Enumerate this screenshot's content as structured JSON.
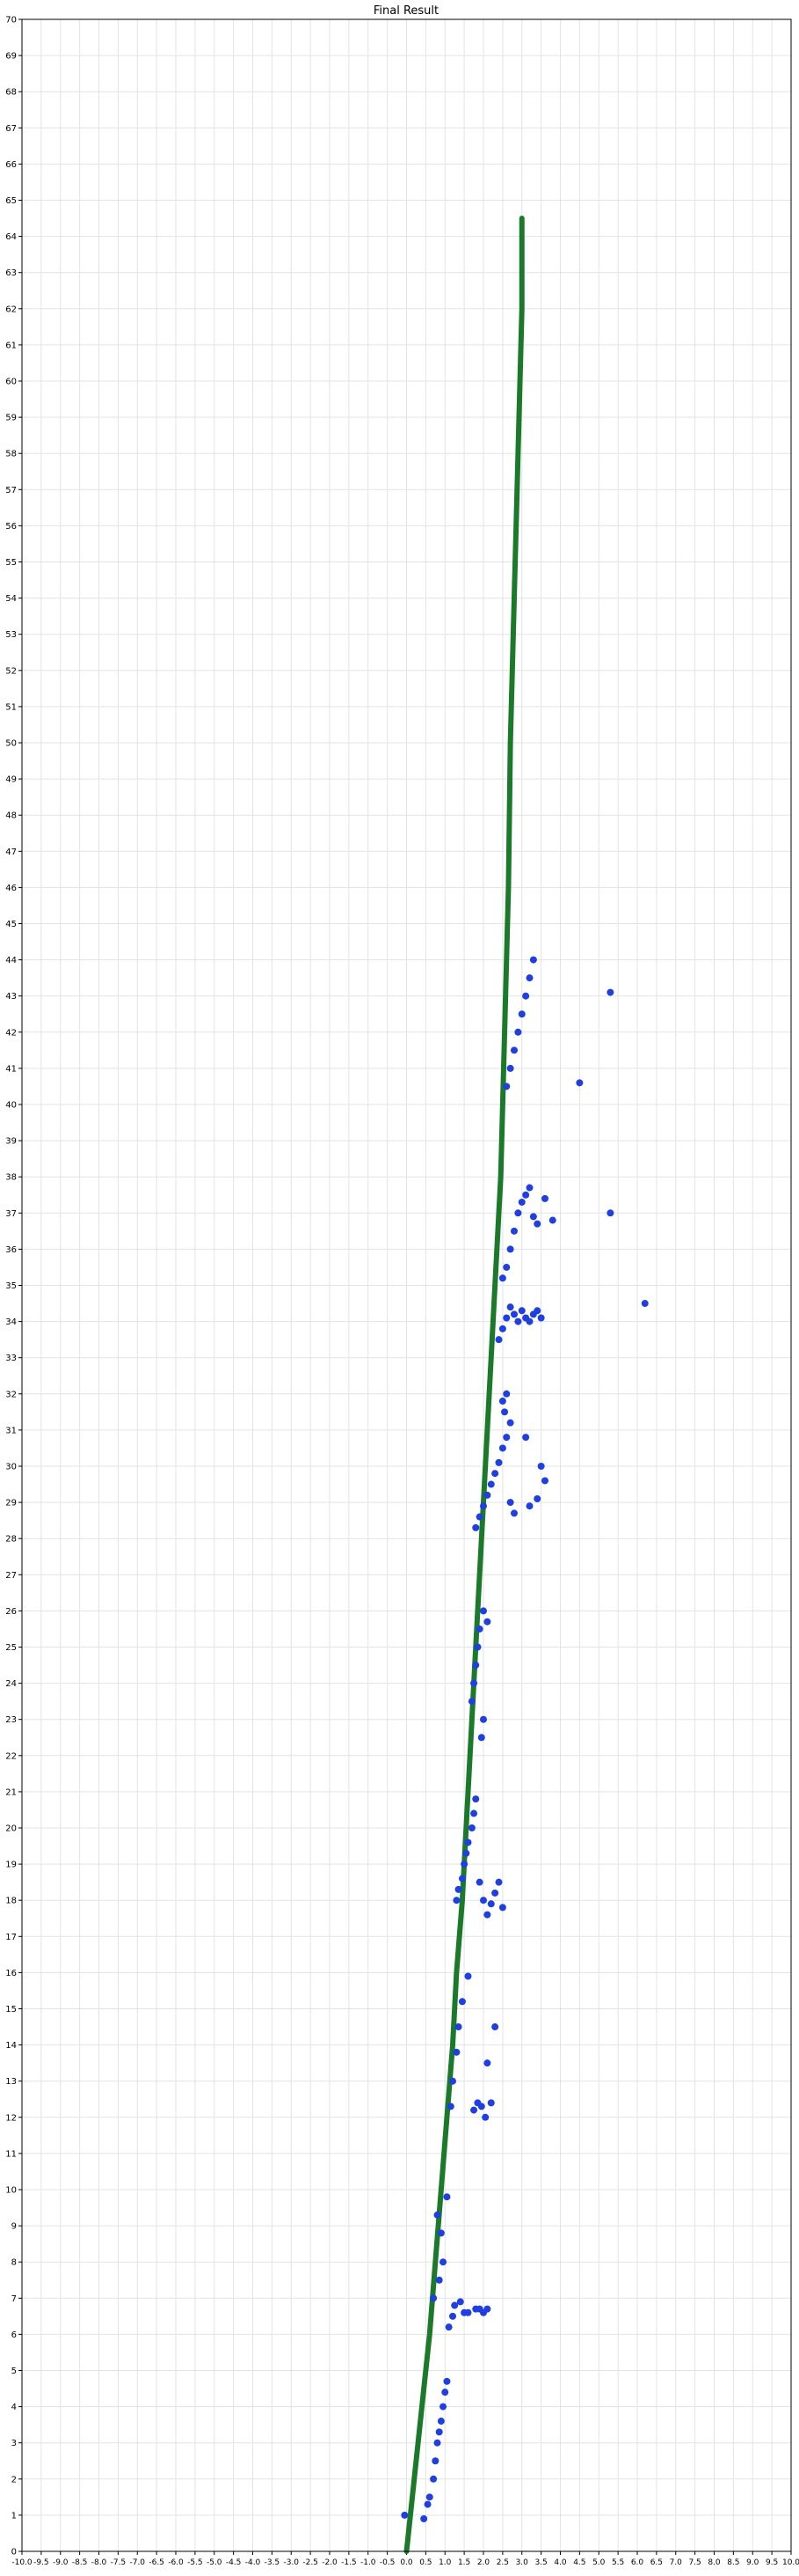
{
  "chart_data": {
    "type": "scatter",
    "title": "Final Result",
    "xlabel": "",
    "ylabel": "",
    "xlim": [
      -10,
      10
    ],
    "ylim": [
      0,
      70
    ],
    "grid": true,
    "x_ticks": [
      -10,
      -9.5,
      -9,
      -8.5,
      -8,
      -7.5,
      -7,
      -6.5,
      -6,
      -5.5,
      -5,
      -4.5,
      -4,
      -3.5,
      -3,
      -2.5,
      -2,
      -1.5,
      -1,
      -0.5,
      0,
      0.5,
      1,
      1.5,
      2,
      2.5,
      3,
      3.5,
      4,
      4.5,
      5,
      5.5,
      6,
      6.5,
      7,
      7.5,
      8,
      8.5,
      9,
      9.5,
      10
    ],
    "x_tick_labels": [
      "-10.0",
      "-9.5",
      "-9.0",
      "-8.5",
      "-8.0",
      "-7.5",
      "-7.0",
      "-6.5",
      "-6.0",
      "-5.5",
      "-5.0",
      "-4.5",
      "-4.0",
      "-3.5",
      "-3.0",
      "-2.5",
      "-2.0",
      "-1.5",
      "-1.0",
      "-0.5",
      "0.0",
      "0.5",
      "1.0",
      "1.5",
      "2.0",
      "2.5",
      "3.0",
      "3.5",
      "4.0",
      "4.5",
      "5.0",
      "5.5",
      "6.0",
      "6.5",
      "7.0",
      "7.5",
      "8.0",
      "8.5",
      "9.0",
      "9.5",
      "10.0"
    ],
    "y_ticks": [
      0,
      1,
      2,
      3,
      4,
      5,
      6,
      7,
      8,
      9,
      10,
      11,
      12,
      13,
      14,
      15,
      16,
      17,
      18,
      19,
      20,
      21,
      22,
      23,
      24,
      25,
      26,
      27,
      28,
      29,
      30,
      31,
      32,
      33,
      34,
      35,
      36,
      37,
      38,
      39,
      40,
      41,
      42,
      43,
      44,
      45,
      46,
      47,
      48,
      49,
      50,
      51,
      52,
      53,
      54,
      55,
      56,
      57,
      58,
      59,
      60,
      61,
      62,
      63,
      64,
      65,
      66,
      67,
      68,
      69,
      70
    ],
    "y_tick_labels": [
      "0",
      "1",
      "2",
      "3",
      "4",
      "5",
      "6",
      "7",
      "8",
      "9",
      "10",
      "11",
      "12",
      "13",
      "14",
      "15",
      "16",
      "17",
      "18",
      "19",
      "20",
      "21",
      "22",
      "23",
      "24",
      "25",
      "26",
      "27",
      "28",
      "29",
      "30",
      "31",
      "32",
      "33",
      "34",
      "35",
      "36",
      "37",
      "38",
      "39",
      "40",
      "41",
      "42",
      "43",
      "44",
      "45",
      "46",
      "47",
      "48",
      "49",
      "50",
      "51",
      "52",
      "53",
      "54",
      "55",
      "56",
      "57",
      "58",
      "59",
      "60",
      "61",
      "62",
      "63",
      "64",
      "65",
      "66",
      "67",
      "68",
      "69",
      "70"
    ],
    "colors": {
      "trajectory": "#1a7a2a",
      "points": "#1f3fe0"
    },
    "series": [
      {
        "kind": "line",
        "x": [
          0.0,
          0.1,
          0.2,
          0.3,
          0.4,
          0.5,
          0.6,
          0.75,
          0.9,
          1.05,
          1.2,
          1.3,
          1.45,
          1.55,
          1.65,
          1.75,
          1.85,
          1.95,
          2.05,
          2.15,
          2.25,
          2.35,
          2.45,
          2.5,
          2.55,
          2.6,
          2.65,
          2.7,
          2.8,
          2.85,
          2.9,
          2.95,
          3.0,
          3.0
        ],
        "y": [
          0.0,
          1.0,
          2.0,
          3.0,
          4.0,
          5.0,
          6.0,
          8.0,
          10.0,
          12.0,
          14.0,
          16.0,
          18.0,
          20.0,
          22.0,
          24.0,
          26.0,
          28.0,
          30.0,
          32.0,
          34.0,
          36.0,
          38.0,
          40.0,
          42.0,
          44.0,
          46.0,
          50.0,
          54.0,
          56.0,
          58.0,
          60.0,
          62.0,
          64.5
        ]
      },
      {
        "kind": "points",
        "x": [
          -0.05,
          0.45,
          0.55,
          0.6,
          0.7,
          0.75,
          0.8,
          0.85,
          0.9,
          0.95,
          1.0,
          1.05,
          0.7,
          0.85,
          0.95,
          0.9,
          0.8,
          1.05,
          1.1,
          1.2,
          1.25,
          1.4,
          1.5,
          1.6,
          1.8,
          1.9,
          2.0,
          2.1,
          1.15,
          1.2,
          1.3,
          1.35,
          1.45,
          1.6,
          1.75,
          1.85,
          1.95,
          2.05,
          2.2,
          2.1,
          2.3,
          1.3,
          1.35,
          1.45,
          1.5,
          1.55,
          1.6,
          1.7,
          1.75,
          1.8,
          1.9,
          2.0,
          2.1,
          2.2,
          2.3,
          2.4,
          2.5,
          1.95,
          2.0,
          1.7,
          1.75,
          1.8,
          1.85,
          1.9,
          2.0,
          2.1,
          1.8,
          1.9,
          2.0,
          2.1,
          2.2,
          2.3,
          2.4,
          2.5,
          2.6,
          2.7,
          2.5,
          2.6,
          2.55,
          2.7,
          2.8,
          3.2,
          3.4,
          3.5,
          3.1,
          3.6,
          6.2,
          5.3,
          2.4,
          2.5,
          2.6,
          2.7,
          2.8,
          2.9,
          3.0,
          3.1,
          3.2,
          3.3,
          3.4,
          3.5,
          2.5,
          2.6,
          2.7,
          2.8,
          2.9,
          3.0,
          3.1,
          3.2,
          3.3,
          3.4,
          3.6,
          3.8,
          4.5,
          5.3,
          2.6,
          2.7,
          2.8,
          2.9,
          3.0,
          3.1,
          3.2,
          3.3
        ],
        "y": [
          1.0,
          0.9,
          1.3,
          1.5,
          2.0,
          2.5,
          3.0,
          3.3,
          3.6,
          4.0,
          4.4,
          4.7,
          7.0,
          7.5,
          8.0,
          8.8,
          9.3,
          9.8,
          6.2,
          6.5,
          6.8,
          6.9,
          6.6,
          6.6,
          6.7,
          6.7,
          6.6,
          6.7,
          12.3,
          13.0,
          13.8,
          14.5,
          15.2,
          15.9,
          12.2,
          12.4,
          12.3,
          12.0,
          12.4,
          13.5,
          14.5,
          18.0,
          18.3,
          18.6,
          19.0,
          19.3,
          19.6,
          20.0,
          20.4,
          20.8,
          18.5,
          18.0,
          17.6,
          17.9,
          18.2,
          18.5,
          17.8,
          22.5,
          23.0,
          23.5,
          24.0,
          24.5,
          25.0,
          25.5,
          26.0,
          25.7,
          28.3,
          28.6,
          28.9,
          29.2,
          29.5,
          29.8,
          30.1,
          30.5,
          30.8,
          31.2,
          31.8,
          32.0,
          31.5,
          29.0,
          28.7,
          28.9,
          29.1,
          30.0,
          30.8,
          29.6,
          34.5,
          37.0,
          33.5,
          33.8,
          34.1,
          34.4,
          34.2,
          34.0,
          34.3,
          34.1,
          34.0,
          34.2,
          34.3,
          34.1,
          35.2,
          35.5,
          36.0,
          36.5,
          37.0,
          37.3,
          37.5,
          37.7,
          36.9,
          36.7,
          37.4,
          36.8,
          40.6,
          43.1,
          40.5,
          41.0,
          41.5,
          42.0,
          42.5,
          43.0,
          43.5,
          44.0
        ]
      }
    ]
  }
}
